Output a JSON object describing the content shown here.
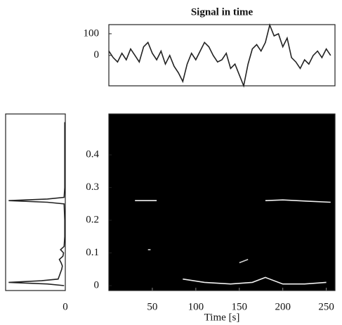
{
  "chart_data": [
    {
      "type": "line",
      "title": "Signal in time",
      "x": [
        0,
        5,
        10,
        15,
        20,
        25,
        30,
        35,
        40,
        45,
        50,
        55,
        60,
        65,
        70,
        75,
        80,
        85,
        90,
        95,
        100,
        105,
        110,
        115,
        120,
        125,
        130,
        135,
        140,
        145,
        150,
        155,
        160,
        165,
        170,
        175,
        180,
        185,
        190,
        195,
        200,
        205,
        210,
        215,
        220,
        225,
        230,
        235,
        240,
        245,
        250,
        255
      ],
      "values": [
        20,
        -10,
        -30,
        10,
        -20,
        30,
        0,
        -30,
        40,
        60,
        10,
        -20,
        20,
        -40,
        0,
        -50,
        -80,
        -120,
        -40,
        10,
        -20,
        20,
        60,
        40,
        0,
        -30,
        -20,
        10,
        -60,
        -40,
        -90,
        -140,
        -40,
        30,
        50,
        20,
        60,
        140,
        90,
        100,
        40,
        80,
        -10,
        -30,
        -60,
        -20,
        -40,
        0,
        20,
        -10,
        30,
        0
      ],
      "color": "#222222",
      "xlim": [
        0,
        260
      ],
      "ylim": [
        -140,
        142
      ],
      "yticks": [
        0,
        100
      ]
    },
    {
      "type": "line",
      "xlabel": "Time [s]",
      "background": "#000000",
      "series": [
        {
          "color": "#f0f0f0",
          "x": [
            30,
            55
          ],
          "values": [
            0.26,
            0.26
          ]
        },
        {
          "color": "#f0f0f0",
          "x": [
            180,
            200,
            230,
            255
          ],
          "values": [
            0.26,
            0.262,
            0.258,
            0.255
          ]
        },
        {
          "color": "#f0f0f0",
          "x": [
            85,
            110,
            140,
            165,
            180,
            200,
            225,
            250
          ],
          "values": [
            0.02,
            0.01,
            0.005,
            0.01,
            0.025,
            0.005,
            0.005,
            0.01
          ]
        },
        {
          "color": "#d0d0d0",
          "x": [
            150,
            160
          ],
          "values": [
            0.07,
            0.08
          ]
        },
        {
          "color": "#d0d0d0",
          "x": [
            45,
            48
          ],
          "values": [
            0.11,
            0.11
          ]
        }
      ],
      "xlim": [
        0,
        260
      ],
      "xticks": [
        50,
        100,
        150,
        200,
        250
      ],
      "ylim": [
        -0.015,
        0.525
      ],
      "yticks": [
        0,
        0.1,
        0.2,
        0.3,
        0.4
      ]
    },
    {
      "type": "line",
      "orientation": "horizontal",
      "color": "#222222",
      "y": [
        0,
        0.005,
        0.01,
        0.015,
        0.02,
        0.03,
        0.04,
        0.05,
        0.06,
        0.07,
        0.08,
        0.09,
        0.1,
        0.11,
        0.12,
        0.15,
        0.2,
        0.25,
        0.255,
        0.26,
        0.265,
        0.27,
        0.3,
        0.4,
        0.5
      ],
      "values": [
        0.02,
        0.3,
        0.95,
        0.4,
        0.12,
        0.1,
        0.08,
        0.06,
        0.05,
        0.07,
        0.1,
        0.04,
        0.03,
        0.08,
        0.02,
        0.01,
        0.01,
        0.02,
        0.3,
        0.95,
        0.3,
        0.02,
        0.01,
        0.01,
        0.01
      ],
      "xlim": [
        1,
        0
      ],
      "xticks": [
        0
      ],
      "ylim": [
        -0.015,
        0.525
      ]
    }
  ]
}
